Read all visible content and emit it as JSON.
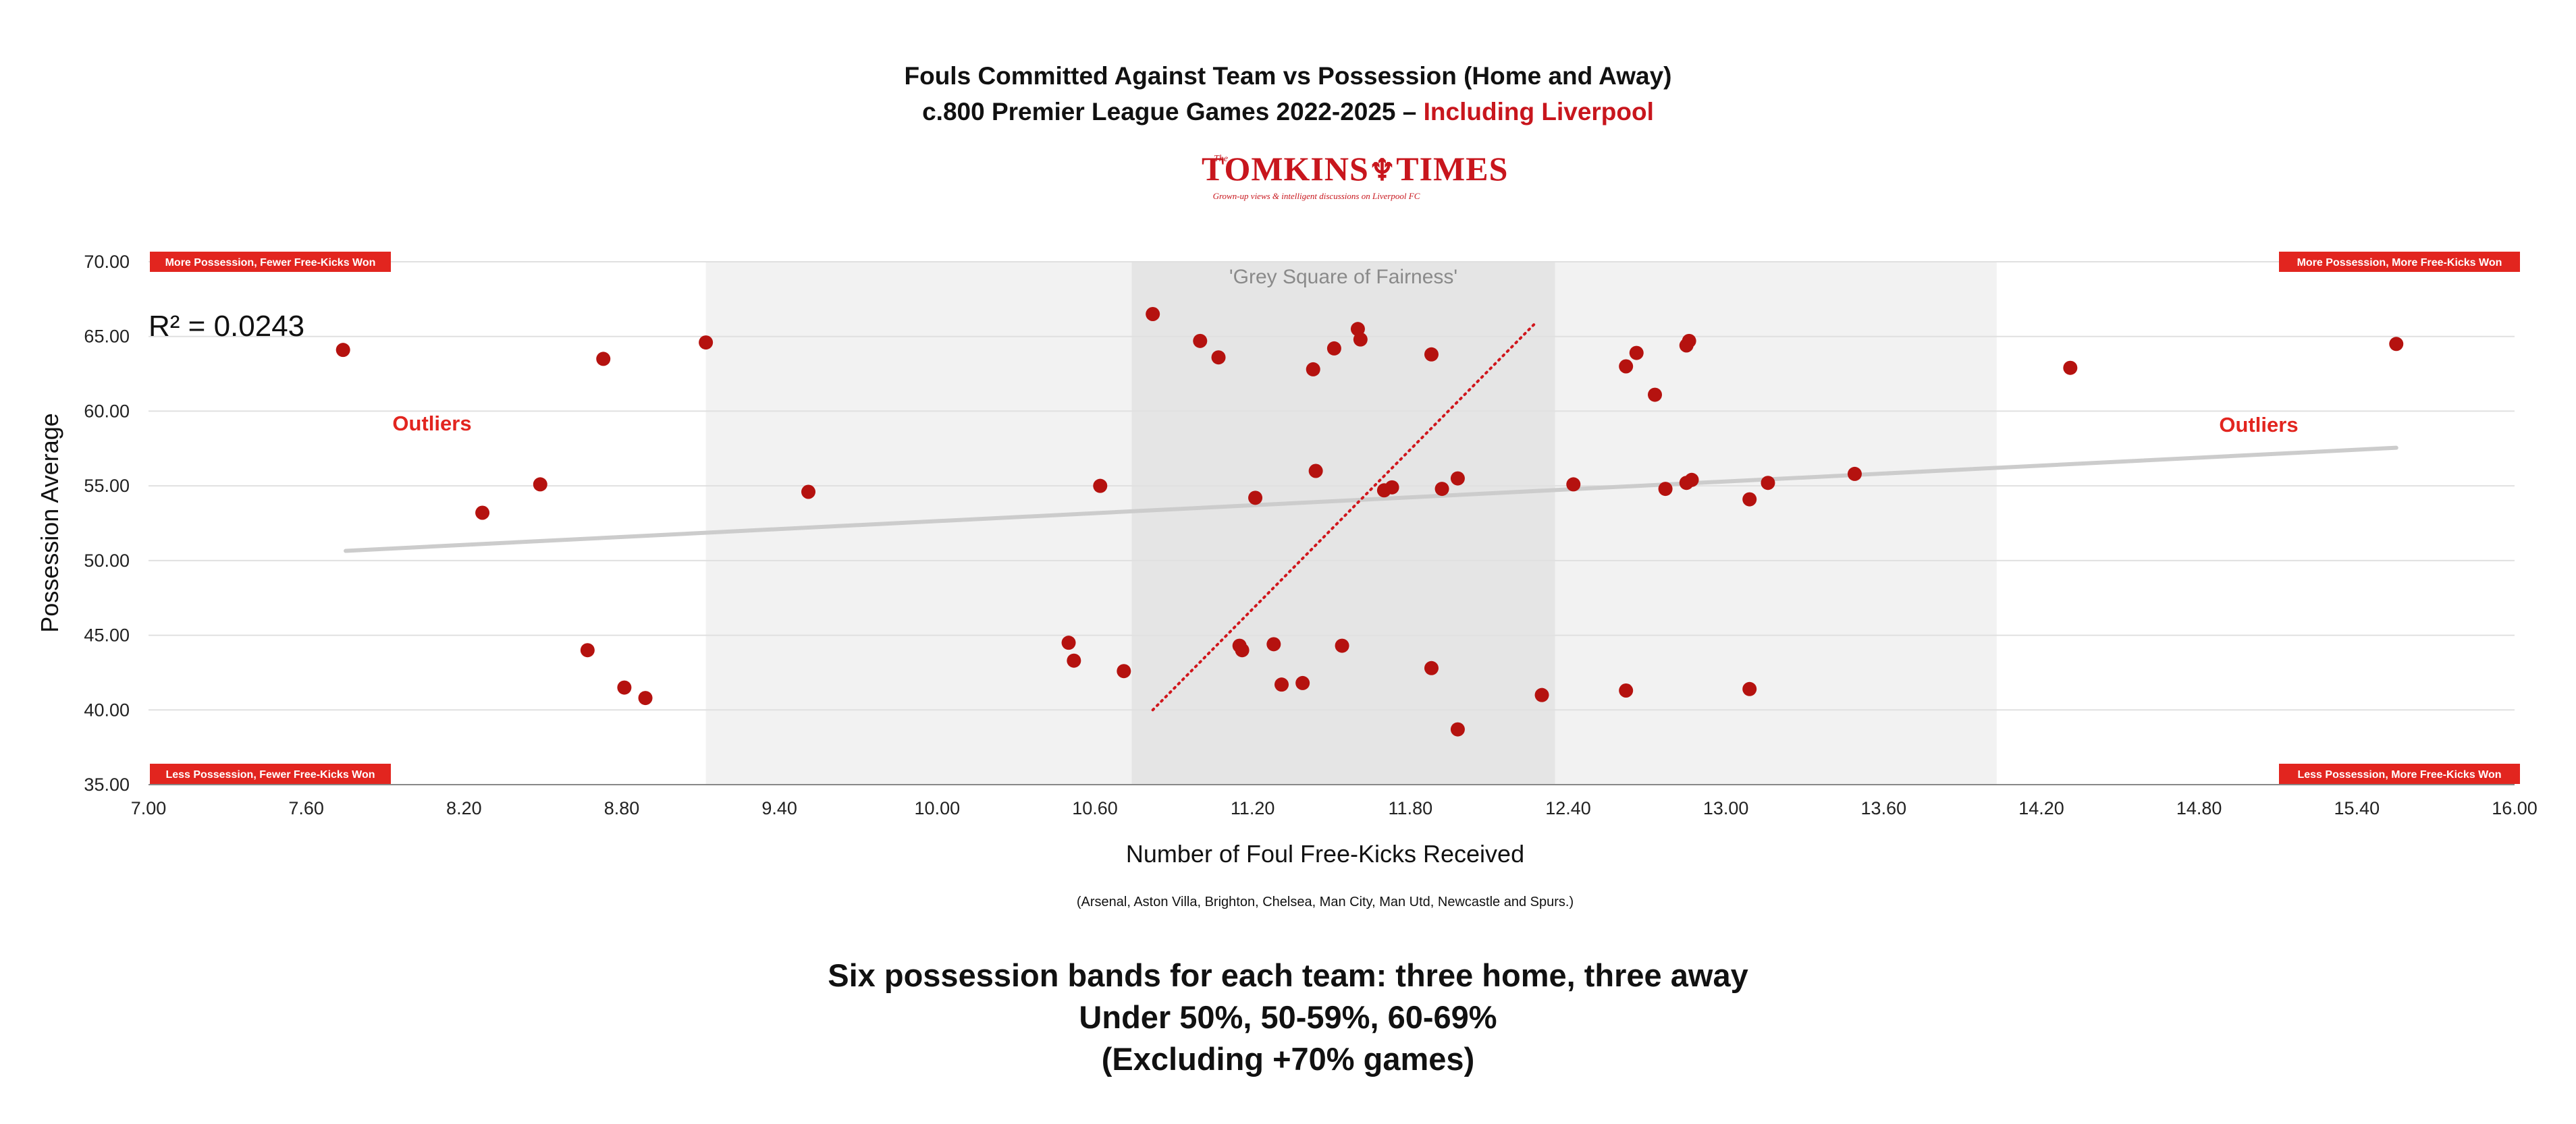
{
  "header": {
    "title_line1": "Fouls Committed Against Team vs Possession (Home and Away)",
    "title_line2_prefix": "c.800 Premier League Games 2022-2025 – ",
    "title_line2_highlight": "Including Liverpool"
  },
  "logo": {
    "the": "The",
    "word": "TOMKINS",
    "word2": "TIMES",
    "tagline": "Grown-up views & intelligent discussions on Liverpool FC"
  },
  "chart_data": {
    "type": "scatter",
    "xlabel": "Number of Foul Free-Kicks Received",
    "ylabel": "Possession Average",
    "xlim": [
      7.0,
      16.0
    ],
    "ylim": [
      35.0,
      70.0
    ],
    "x_ticks": [
      "7.00",
      "7.60",
      "8.20",
      "8.80",
      "9.40",
      "10.00",
      "10.60",
      "11.20",
      "11.80",
      "12.40",
      "13.00",
      "13.60",
      "14.20",
      "14.80",
      "15.40",
      "16.00"
    ],
    "y_ticks": [
      "35.00",
      "40.00",
      "45.00",
      "50.00",
      "55.00",
      "60.00",
      "65.00",
      "70.00"
    ],
    "grid": "horizontal",
    "r_squared_label": "R² = 0.0243",
    "sub_note": "(Arsenal, Aston Villa, Brighton, Chelsea, Man City, Man Utd, Newcastle and Spurs.)",
    "colors": {
      "points": "#b5120f",
      "trendline": "#cccccc",
      "diagonal": "#d0161c",
      "label_bg": "#e2251f",
      "outlier_text": "#e2251f"
    },
    "bands": [
      {
        "x_from": 9.12,
        "x_to": 14.03,
        "color": "#f2f2f2"
      },
      {
        "x_from": 10.74,
        "x_to": 12.35,
        "color": "#e5e5e5",
        "label": "'Grey Square of Fairness'"
      }
    ],
    "trendline": {
      "x": [
        7.75,
        15.55
      ],
      "y": [
        50.65,
        57.55
      ]
    },
    "diagonal": {
      "x": [
        10.82,
        12.27
      ],
      "y": [
        40.0,
        65.8
      ]
    },
    "quadrant_labels": {
      "top_left": "More Possession, Fewer Free-Kicks Won",
      "top_right": "More Possession, More Free-Kicks Won",
      "bottom_left": "Less Possession, Fewer Free-Kicks Won",
      "bottom_right": "Less Possession, More Free-Kicks Won"
    },
    "outliers_label": "Outliers",
    "points": [
      {
        "x": 7.74,
        "y": 64.1
      },
      {
        "x": 8.73,
        "y": 63.5
      },
      {
        "x": 9.12,
        "y": 64.6
      },
      {
        "x": 8.27,
        "y": 53.2
      },
      {
        "x": 8.49,
        "y": 55.1
      },
      {
        "x": 9.51,
        "y": 54.6
      },
      {
        "x": 8.67,
        "y": 44.0
      },
      {
        "x": 8.81,
        "y": 41.5
      },
      {
        "x": 8.89,
        "y": 40.8
      },
      {
        "x": 10.82,
        "y": 66.5
      },
      {
        "x": 11.0,
        "y": 64.7
      },
      {
        "x": 11.07,
        "y": 63.6
      },
      {
        "x": 11.43,
        "y": 62.8
      },
      {
        "x": 11.51,
        "y": 64.2
      },
      {
        "x": 11.6,
        "y": 65.5
      },
      {
        "x": 11.61,
        "y": 64.8
      },
      {
        "x": 11.88,
        "y": 63.8
      },
      {
        "x": 12.62,
        "y": 63.0
      },
      {
        "x": 12.66,
        "y": 63.9
      },
      {
        "x": 12.73,
        "y": 61.1
      },
      {
        "x": 12.85,
        "y": 64.4
      },
      {
        "x": 12.86,
        "y": 64.7
      },
      {
        "x": 14.31,
        "y": 62.9
      },
      {
        "x": 15.55,
        "y": 64.5
      },
      {
        "x": 10.62,
        "y": 55.0
      },
      {
        "x": 11.21,
        "y": 54.2
      },
      {
        "x": 11.44,
        "y": 56.0
      },
      {
        "x": 11.7,
        "y": 54.7
      },
      {
        "x": 11.73,
        "y": 54.9
      },
      {
        "x": 11.92,
        "y": 54.8
      },
      {
        "x": 11.98,
        "y": 55.5
      },
      {
        "x": 12.42,
        "y": 55.1
      },
      {
        "x": 12.77,
        "y": 54.8
      },
      {
        "x": 12.85,
        "y": 55.2
      },
      {
        "x": 12.87,
        "y": 55.4
      },
      {
        "x": 13.09,
        "y": 54.1
      },
      {
        "x": 13.16,
        "y": 55.2
      },
      {
        "x": 13.49,
        "y": 55.8
      },
      {
        "x": 10.5,
        "y": 44.5
      },
      {
        "x": 10.52,
        "y": 43.3
      },
      {
        "x": 10.71,
        "y": 42.6
      },
      {
        "x": 11.15,
        "y": 44.3
      },
      {
        "x": 11.16,
        "y": 44.0
      },
      {
        "x": 11.28,
        "y": 44.4
      },
      {
        "x": 11.31,
        "y": 41.7
      },
      {
        "x": 11.39,
        "y": 41.8
      },
      {
        "x": 11.54,
        "y": 44.3
      },
      {
        "x": 11.88,
        "y": 42.8
      },
      {
        "x": 11.98,
        "y": 38.7
      },
      {
        "x": 12.3,
        "y": 41.0
      },
      {
        "x": 12.62,
        "y": 41.3
      },
      {
        "x": 13.09,
        "y": 41.4
      }
    ]
  },
  "footer": {
    "line1": "Six possession bands for each team: three home, three away",
    "line2": "Under 50%, 50-59%, 60-69%",
    "line3": "(Excluding +70% games)"
  }
}
